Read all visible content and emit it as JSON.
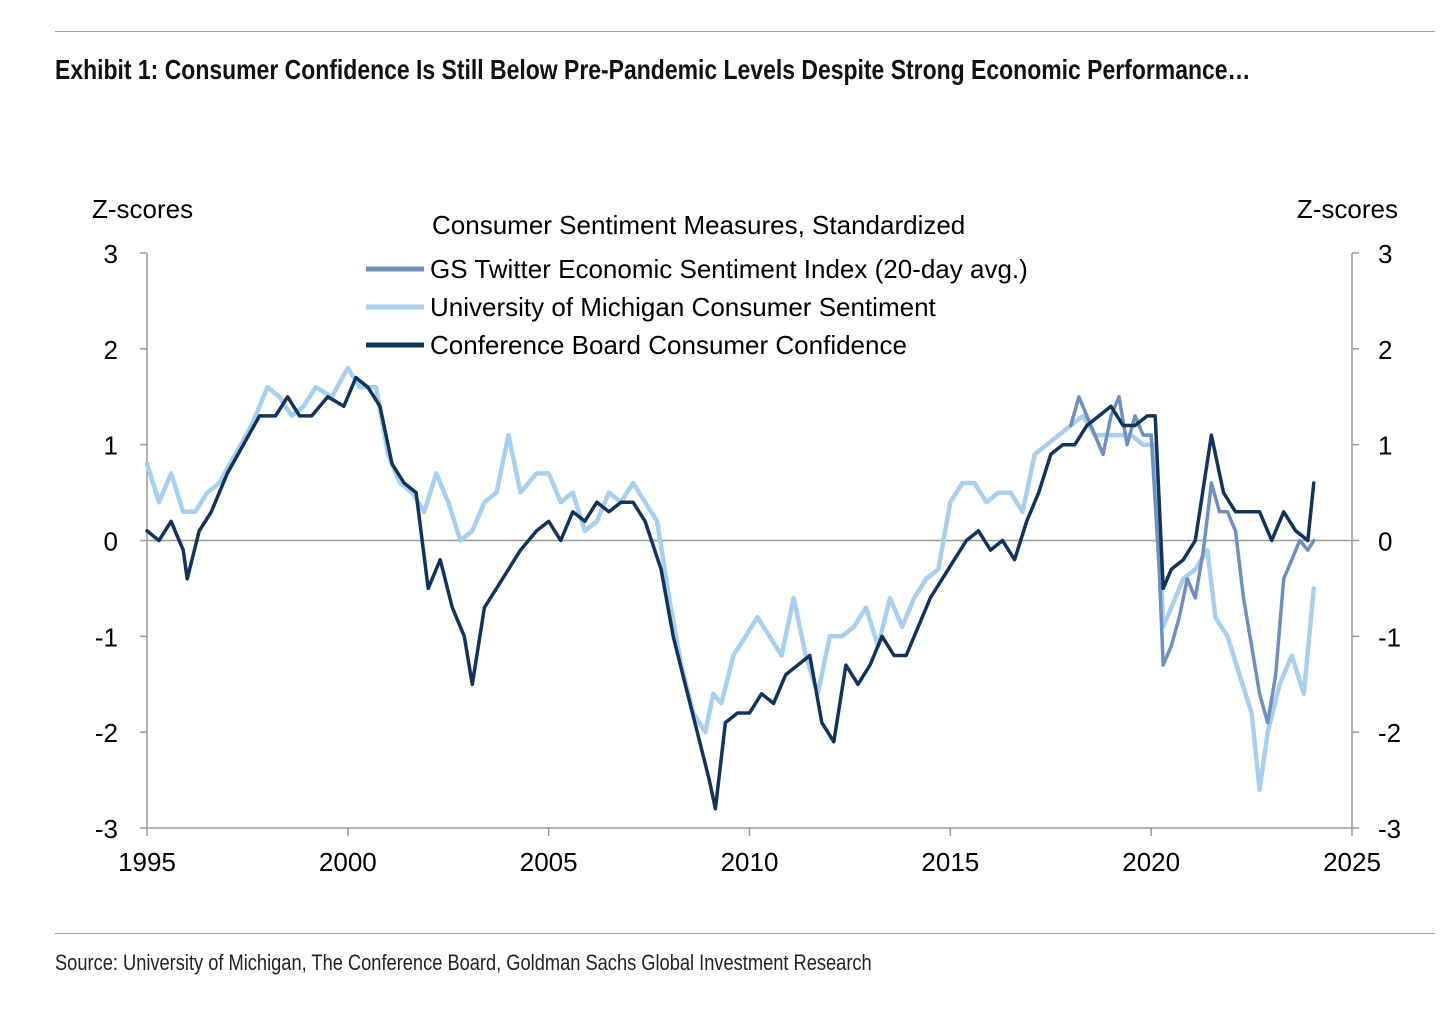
{
  "title": "Exhibit 1: Consumer Confidence Is Still Below Pre-Pandemic Levels Despite Strong Economic Performance…",
  "source": "Source: University of Michigan, The Conference Board, Goldman Sachs Global Investment Research",
  "chart_data": {
    "type": "line",
    "title": "Consumer Sentiment Measures, Standardized",
    "ylabel_left": "Z-scores",
    "ylabel_right": "Z-scores",
    "xlim": [
      1995,
      2025
    ],
    "ylim": [
      -3,
      3
    ],
    "xticks": [
      1995,
      2000,
      2005,
      2010,
      2015,
      2020,
      2025
    ],
    "yticks": [
      -3,
      -2,
      -1,
      0,
      1,
      2,
      3
    ],
    "grid": false,
    "legend_position": "top-center",
    "series": [
      {
        "name": "GS Twitter Economic Sentiment Index (20-day avg.)",
        "color": "#6f8fbd",
        "x": [
          2018.0,
          2018.2,
          2018.4,
          2018.6,
          2018.8,
          2019.0,
          2019.2,
          2019.4,
          2019.6,
          2019.8,
          2020.0,
          2020.2,
          2020.3,
          2020.5,
          2020.7,
          2020.9,
          2021.1,
          2021.3,
          2021.5,
          2021.7,
          2021.9,
          2022.1,
          2022.3,
          2022.5,
          2022.7,
          2022.9,
          2023.1,
          2023.3,
          2023.5,
          2023.7,
          2023.9,
          2024.05
        ],
        "y": [
          1.2,
          1.5,
          1.3,
          1.1,
          0.9,
          1.3,
          1.5,
          1.0,
          1.3,
          1.1,
          1.1,
          -0.3,
          -1.3,
          -1.1,
          -0.8,
          -0.4,
          -0.6,
          -0.1,
          0.6,
          0.3,
          0.3,
          0.1,
          -0.6,
          -1.1,
          -1.6,
          -1.9,
          -1.4,
          -0.4,
          -0.2,
          0.0,
          -0.1,
          0.0
        ]
      },
      {
        "name": "University of Michigan Consumer Sentiment",
        "color": "#a9cfee",
        "x": [
          1995.0,
          1995.3,
          1995.6,
          1995.9,
          1996.2,
          1996.5,
          1996.8,
          1997.2,
          1997.6,
          1998.0,
          1998.3,
          1998.6,
          1998.9,
          1999.2,
          1999.6,
          2000.0,
          2000.3,
          2000.7,
          2001.0,
          2001.3,
          2001.6,
          2001.9,
          2002.2,
          2002.5,
          2002.8,
          2003.1,
          2003.4,
          2003.7,
          2004.0,
          2004.3,
          2004.7,
          2005.0,
          2005.3,
          2005.6,
          2005.9,
          2006.2,
          2006.5,
          2006.8,
          2007.1,
          2007.4,
          2007.7,
          2008.0,
          2008.3,
          2008.6,
          2008.9,
          2009.1,
          2009.3,
          2009.6,
          2009.9,
          2010.2,
          2010.5,
          2010.8,
          2011.1,
          2011.4,
          2011.7,
          2012.0,
          2012.3,
          2012.6,
          2012.9,
          2013.2,
          2013.5,
          2013.8,
          2014.1,
          2014.4,
          2014.7,
          2015.0,
          2015.3,
          2015.6,
          2015.9,
          2016.2,
          2016.5,
          2016.8,
          2017.1,
          2017.4,
          2017.7,
          2018.0,
          2018.3,
          2018.6,
          2018.9,
          2019.2,
          2019.5,
          2019.8,
          2020.1,
          2020.3,
          2020.5,
          2020.8,
          2021.1,
          2021.4,
          2021.6,
          2021.9,
          2022.2,
          2022.5,
          2022.7,
          2022.9,
          2023.2,
          2023.5,
          2023.8,
          2024.05
        ],
        "y": [
          0.8,
          0.4,
          0.7,
          0.3,
          0.3,
          0.5,
          0.6,
          0.9,
          1.2,
          1.6,
          1.5,
          1.3,
          1.4,
          1.6,
          1.5,
          1.8,
          1.6,
          1.6,
          0.9,
          0.6,
          0.5,
          0.3,
          0.7,
          0.4,
          0.0,
          0.1,
          0.4,
          0.5,
          1.1,
          0.5,
          0.7,
          0.7,
          0.4,
          0.5,
          0.1,
          0.2,
          0.5,
          0.4,
          0.6,
          0.4,
          0.2,
          -0.6,
          -1.3,
          -1.8,
          -2.0,
          -1.6,
          -1.7,
          -1.2,
          -1.0,
          -0.8,
          -1.0,
          -1.2,
          -0.6,
          -1.2,
          -1.6,
          -1.0,
          -1.0,
          -0.9,
          -0.7,
          -1.1,
          -0.6,
          -0.9,
          -0.6,
          -0.4,
          -0.3,
          0.4,
          0.6,
          0.6,
          0.4,
          0.5,
          0.5,
          0.3,
          0.9,
          1.0,
          1.1,
          1.2,
          1.3,
          1.1,
          1.1,
          1.1,
          1.1,
          1.0,
          1.0,
          -0.9,
          -0.7,
          -0.4,
          -0.3,
          -0.1,
          -0.8,
          -1.0,
          -1.4,
          -1.8,
          -2.6,
          -2.0,
          -1.5,
          -1.2,
          -1.6,
          -0.5
        ]
      },
      {
        "name": "Conference Board Consumer Confidence",
        "color": "#12345c",
        "x": [
          1995.0,
          1995.3,
          1995.6,
          1995.9,
          1996.0,
          1996.3,
          1996.6,
          1997.0,
          1997.4,
          1997.8,
          1998.2,
          1998.5,
          1998.8,
          1999.1,
          1999.5,
          1999.9,
          2000.2,
          2000.5,
          2000.8,
          2001.1,
          2001.4,
          2001.7,
          2002.0,
          2002.3,
          2002.6,
          2002.9,
          2003.1,
          2003.4,
          2003.7,
          2004.0,
          2004.3,
          2004.7,
          2005.0,
          2005.3,
          2005.6,
          2005.9,
          2006.2,
          2006.5,
          2006.8,
          2007.1,
          2007.4,
          2007.8,
          2008.1,
          2008.4,
          2008.7,
          2009.0,
          2009.15,
          2009.4,
          2009.7,
          2010.0,
          2010.3,
          2010.6,
          2010.9,
          2011.2,
          2011.5,
          2011.8,
          2012.1,
          2012.4,
          2012.7,
          2013.0,
          2013.3,
          2013.6,
          2013.9,
          2014.2,
          2014.5,
          2014.8,
          2015.1,
          2015.4,
          2015.7,
          2016.0,
          2016.3,
          2016.6,
          2016.9,
          2017.2,
          2017.5,
          2017.8,
          2018.1,
          2018.4,
          2018.7,
          2019.0,
          2019.3,
          2019.6,
          2019.9,
          2020.1,
          2020.3,
          2020.5,
          2020.8,
          2021.1,
          2021.5,
          2021.8,
          2022.1,
          2022.4,
          2022.7,
          2023.0,
          2023.3,
          2023.6,
          2023.9,
          2024.05
        ],
        "y": [
          0.1,
          0.0,
          0.2,
          -0.1,
          -0.4,
          0.1,
          0.3,
          0.7,
          1.0,
          1.3,
          1.3,
          1.5,
          1.3,
          1.3,
          1.5,
          1.4,
          1.7,
          1.6,
          1.4,
          0.8,
          0.6,
          0.5,
          -0.5,
          -0.2,
          -0.7,
          -1.0,
          -1.5,
          -0.7,
          -0.5,
          -0.3,
          -0.1,
          0.1,
          0.2,
          0.0,
          0.3,
          0.2,
          0.4,
          0.3,
          0.4,
          0.4,
          0.2,
          -0.3,
          -1.0,
          -1.5,
          -2.0,
          -2.5,
          -2.8,
          -1.9,
          -1.8,
          -1.8,
          -1.6,
          -1.7,
          -1.4,
          -1.3,
          -1.2,
          -1.9,
          -2.1,
          -1.3,
          -1.5,
          -1.3,
          -1.0,
          -1.2,
          -1.2,
          -0.9,
          -0.6,
          -0.4,
          -0.2,
          0.0,
          0.1,
          -0.1,
          0.0,
          -0.2,
          0.2,
          0.5,
          0.9,
          1.0,
          1.0,
          1.2,
          1.3,
          1.4,
          1.2,
          1.2,
          1.3,
          1.3,
          -0.5,
          -0.3,
          -0.2,
          0.0,
          1.1,
          0.5,
          0.3,
          0.3,
          0.3,
          0.0,
          0.3,
          0.1,
          0.0,
          0.6
        ]
      }
    ]
  }
}
